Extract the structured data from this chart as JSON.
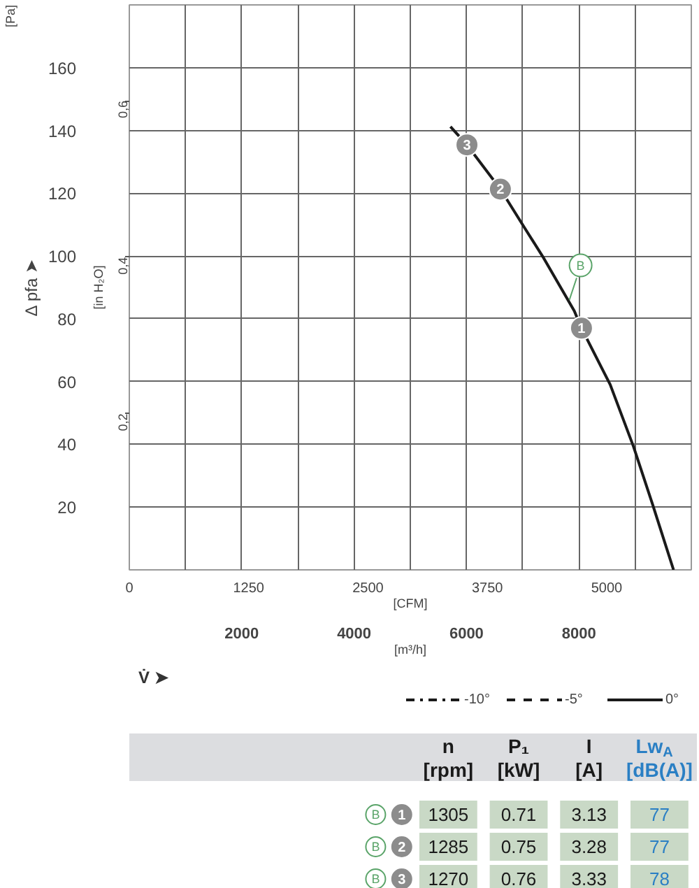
{
  "chart_data": [
    {
      "type": "line",
      "ylabel": "Δ pfa ➤",
      "y2label": "[in H₂O]",
      "xlabel": "[m³/h]",
      "x2label": "[CFM]",
      "annotations": [
        "[Pa]",
        "V̇ ➤",
        {
          "text": "B",
          "x": 7830,
          "y": 86
        },
        {
          "text": "1",
          "x": 8046,
          "y": 77.0
        },
        {
          "text": "2",
          "x": 6603,
          "y": 121.3
        },
        {
          "text": "3",
          "x": 6008,
          "y": 135.4
        }
      ],
      "xlim": [
        0,
        10000
      ],
      "xticks": [
        {
          "value": 1000,
          "label": null
        },
        2000,
        {
          "value": 3000,
          "label": null
        },
        4000,
        {
          "value": 5000,
          "label": null
        },
        6000,
        {
          "value": 7000,
          "label": null
        },
        8000,
        {
          "value": 9000,
          "label": null
        }
      ],
      "x2lim": [
        0,
        5886
      ],
      "x2ticks": [
        0,
        1250,
        2500,
        3750,
        5000
      ],
      "ylim": [
        0,
        180
      ],
      "yticks": [
        20,
        40,
        60,
        80,
        100,
        120,
        140,
        160
      ],
      "y2lim": [
        0,
        0.7226
      ],
      "y2ticks": [
        {
          "value": 0.2,
          "label": "0,2"
        },
        {
          "value": 0.4,
          "label": "0,4"
        },
        {
          "value": 0.6,
          "label": "0,6"
        }
      ],
      "grid": true,
      "legend": "bottom right",
      "series": [
        {
          "name": "-10°",
          "color": "#1a1a1a",
          "line_style": "dashdot"
        },
        {
          "name": "-5°",
          "color": "#1a1a1a",
          "line_style": "dashed"
        },
        {
          "name": "0°",
          "color": "#1a1a1a",
          "line_style": "solid",
          "x": [
            5714,
            6008,
            6603,
            7015,
            7354,
            7918,
            8046,
            8557,
            8971,
            9310,
            9684
          ],
          "values": [
            141.2,
            135.4,
            121.3,
            109.5,
            99.9,
            82.5,
            77.0,
            59.0,
            39.3,
            20.9,
            0
          ]
        }
      ]
    },
    {
      "type": "other",
      "categories": [
        "n [rpm]",
        "P₁ [kW]",
        "I [A]",
        "Lw$_{A}$ [dB(A)]"
      ],
      "color": "#c9d9c6",
      "y_categories": [
        "1",
        "2",
        "3"
      ],
      "y2_categories": [
        "B",
        "B",
        "B"
      ],
      "annotations": [
        "1305",
        "0.71",
        "3.13",
        "77",
        "1285",
        "0.75",
        "3.28",
        "77",
        "1270",
        "0.76",
        "3.33",
        "78"
      ]
    }
  ]
}
